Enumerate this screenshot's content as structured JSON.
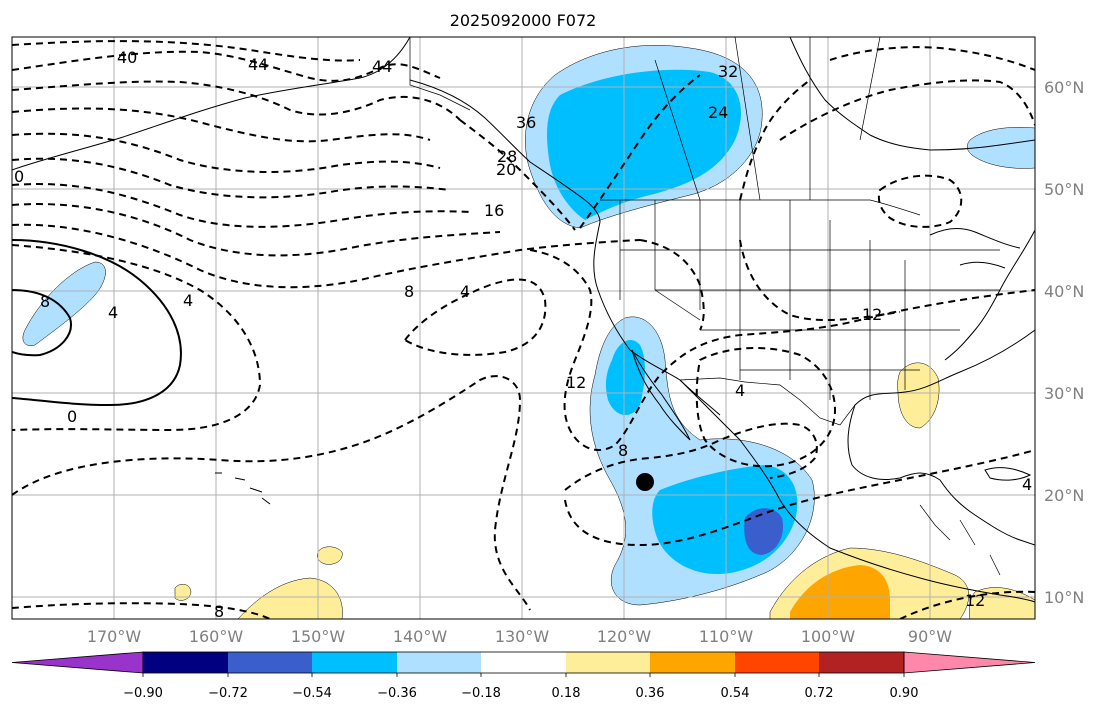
{
  "title": "2025092000 F072",
  "longitude_labels": [
    "170°W",
    "160°W",
    "150°W",
    "140°W",
    "130°W",
    "120°W",
    "110°W",
    "100°W",
    "90°W"
  ],
  "latitude_labels": [
    "60°N",
    "50°N",
    "40°N",
    "30°N",
    "20°N",
    "10°N"
  ],
  "colorbar": {
    "ticks": [
      "−0.90",
      "−0.72",
      "−0.54",
      "−0.36",
      "−0.18",
      "0.18",
      "0.36",
      "0.54",
      "0.72",
      "0.90"
    ],
    "colors": [
      "#9933cc",
      "#000080",
      "#3a5fcd",
      "#00bfff",
      "#b0e0ff",
      "#ffffff",
      "#ffee99",
      "#ffa500",
      "#ff4500",
      "#b22222",
      "#ff88aa"
    ]
  },
  "contour_labels": [
    "40",
    "44",
    "44",
    "32",
    "24",
    "36",
    "28",
    "20",
    "0",
    "16",
    "8",
    "4",
    "4",
    "8",
    "4",
    "0",
    "12",
    "8",
    "4",
    "12",
    "8",
    "12",
    "4"
  ],
  "marker": "storm-center"
}
